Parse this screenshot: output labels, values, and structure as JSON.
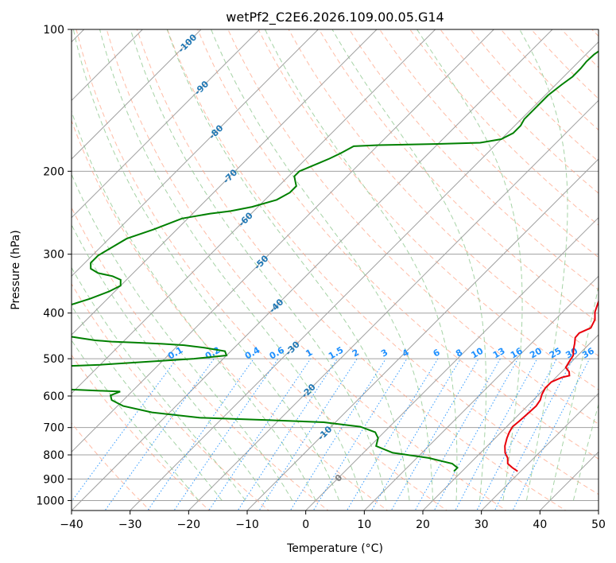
{
  "chart_data": {
    "type": "skew-t",
    "title": "wetPf2_C2E6.2026.109.00.05.G14",
    "xlabel": "Temperature (°C)",
    "ylabel": "Pressure (hPa)",
    "xlim": [
      -40,
      50
    ],
    "ylim": [
      1050,
      100
    ],
    "x_ticks": [
      -40,
      -30,
      -20,
      -10,
      0,
      10,
      20,
      30,
      40,
      50
    ],
    "x_tick_labels": [
      "−40",
      "−30",
      "−20",
      "−10",
      "0",
      "10",
      "20",
      "30",
      "40",
      "50"
    ],
    "y_ticks": [
      1000,
      900,
      800,
      700,
      600,
      500,
      400,
      300,
      200,
      100
    ],
    "y_tick_labels": [
      "1000",
      "900",
      "800",
      "700",
      "600",
      "500",
      "400",
      "300",
      "200",
      "100"
    ],
    "grid": true,
    "skew_degrees": 45,
    "colors": {
      "temperature": "#e8000b",
      "dewpoint": "#008000",
      "isotherm": "#a0a0a0",
      "dry_adiabat": "#ffa080",
      "moist_adiabat": "#90c890",
      "mixing_ratio": "#1e90ff",
      "label_blue": "#1f77b4",
      "label_red": "#d62728",
      "label_mixing": "#1e90ff",
      "label_zero": "#808080"
    },
    "series": [
      {
        "name": "Temperature",
        "points": [
          [
            29.5,
            867
          ],
          [
            28,
            852
          ],
          [
            26.5,
            835
          ],
          [
            25.5,
            812
          ],
          [
            24.2,
            792
          ],
          [
            23,
            766
          ],
          [
            22,
            737
          ],
          [
            21.4,
            716
          ],
          [
            21,
            697
          ],
          [
            21.2,
            678
          ],
          [
            21.4,
            650
          ],
          [
            21.5,
            630
          ],
          [
            21.2,
            612
          ],
          [
            20.5,
            595
          ],
          [
            20,
            577
          ],
          [
            20,
            560
          ],
          [
            21,
            548
          ],
          [
            22,
            543
          ],
          [
            21.3,
            533
          ],
          [
            20,
            522
          ],
          [
            19.6,
            508
          ],
          [
            19.2,
            492
          ],
          [
            18.3,
            479
          ],
          [
            17.4,
            464
          ],
          [
            16.5,
            451
          ],
          [
            16.4,
            441
          ],
          [
            17.5,
            430
          ],
          [
            16.8,
            413
          ],
          [
            15.5,
            398
          ],
          [
            14.5,
            381
          ],
          [
            13.3,
            360
          ],
          [
            12.2,
            342
          ],
          [
            11,
            322
          ],
          [
            9.8,
            302
          ],
          [
            8.5,
            289
          ],
          [
            6,
            270
          ],
          [
            3.5,
            250
          ],
          [
            1,
            232
          ],
          [
            -1,
            213
          ],
          [
            -2.5,
            198
          ],
          [
            -4,
            182
          ],
          [
            -5,
            168
          ],
          [
            -6,
            152
          ],
          [
            -6.5,
            143
          ],
          [
            -7.5,
            133
          ],
          [
            -8.5,
            124
          ],
          [
            -9.3,
            117
          ],
          [
            -10,
            113
          ]
        ]
      },
      {
        "name": "Dewpoint",
        "points": [
          [
            18.6,
            867
          ],
          [
            18.6,
            852
          ],
          [
            17,
            835
          ],
          [
            12,
            812
          ],
          [
            5,
            792
          ],
          [
            1,
            766
          ],
          [
            0,
            737
          ],
          [
            -1.5,
            716
          ],
          [
            -5,
            697
          ],
          [
            -12,
            682
          ],
          [
            -22,
            675
          ],
          [
            -34,
            667
          ],
          [
            -43,
            650
          ],
          [
            -49,
            630
          ],
          [
            -52,
            612
          ],
          [
            -53,
            598
          ],
          [
            -52,
            587
          ],
          [
            -75,
            572
          ],
          [
            -80,
            560
          ],
          [
            -82,
            548
          ],
          [
            -80,
            535
          ],
          [
            -76,
            525
          ],
          [
            -60,
            515
          ],
          [
            -45,
            500
          ],
          [
            -40,
            492
          ],
          [
            -41,
            482
          ],
          [
            -45,
            474
          ],
          [
            -49,
            468
          ],
          [
            -53,
            465
          ],
          [
            -58,
            462
          ],
          [
            -62,
            460
          ],
          [
            -65,
            457
          ],
          [
            -68,
            452
          ],
          [
            -72,
            445
          ],
          [
            -76,
            431
          ],
          [
            -77,
            418
          ],
          [
            -77,
            408
          ],
          [
            -78,
            400
          ],
          [
            -77,
            392
          ],
          [
            -75,
            383
          ],
          [
            -73,
            373
          ],
          [
            -71,
            360
          ],
          [
            -70,
            350
          ],
          [
            -71,
            340
          ],
          [
            -73,
            334
          ],
          [
            -76,
            329
          ],
          [
            -78,
            322
          ],
          [
            -79,
            313
          ],
          [
            -79,
            302
          ],
          [
            -78,
            290
          ],
          [
            -77,
            278
          ],
          [
            -74,
            266
          ],
          [
            -71,
            252
          ],
          [
            -67,
            246
          ],
          [
            -64,
            243
          ],
          [
            -61,
            238
          ],
          [
            -58,
            230
          ],
          [
            -57,
            222
          ],
          [
            -57,
            215
          ],
          [
            -58,
            210
          ],
          [
            -59,
            205
          ],
          [
            -59,
            200
          ],
          [
            -58,
            196
          ],
          [
            -57,
            192
          ],
          [
            -56,
            188
          ],
          [
            -55,
            183
          ],
          [
            -54,
            177
          ],
          [
            -50,
            176
          ],
          [
            -40,
            175
          ],
          [
            -33,
            174
          ],
          [
            -30,
            171
          ],
          [
            -29,
            166
          ],
          [
            -29,
            160
          ],
          [
            -29.5,
            155
          ],
          [
            -29.5,
            146
          ],
          [
            -29.5,
            138
          ],
          [
            -29,
            131
          ],
          [
            -28.5,
            126
          ],
          [
            -28.5,
            121
          ],
          [
            -28.7,
            117
          ],
          [
            -28.6,
            113
          ],
          [
            -28.2,
            110
          ],
          [
            -28.2,
            106
          ],
          [
            -28.2,
            103
          ],
          [
            -28.2,
            100
          ]
        ]
      }
    ],
    "isotherm_values": [
      -120,
      -110,
      -100,
      -90,
      -80,
      -70,
      -60,
      -50,
      -40,
      -30,
      -20,
      -10,
      0,
      10,
      20,
      30,
      40,
      50
    ],
    "isotherm_labels": [
      {
        "text": "-100",
        "value": -100,
        "p": 107
      },
      {
        "text": "-90",
        "value": -90,
        "p": 133
      },
      {
        "text": "-80",
        "value": -80,
        "p": 165
      },
      {
        "text": "-70",
        "value": -70,
        "p": 205
      },
      {
        "text": "-60",
        "value": -60,
        "p": 253
      },
      {
        "text": "-50",
        "value": -50,
        "p": 312
      },
      {
        "text": "-40",
        "value": -40,
        "p": 386
      },
      {
        "text": "-30",
        "value": -30,
        "p": 475
      },
      {
        "text": "-20",
        "value": -20,
        "p": 585
      },
      {
        "text": "-10",
        "value": -10,
        "p": 719
      },
      {
        "text": "0",
        "value": 0,
        "p": 895
      },
      {
        "text": "10",
        "value": 10,
        "p": 1050
      },
      {
        "text": "20",
        "value": 20,
        "p": 1050
      },
      {
        "text": "30",
        "value": 30,
        "p": 1050
      },
      {
        "text": "40",
        "value": 40,
        "p": 1050
      }
    ],
    "mixing_ratio_values": [
      0.1,
      0.2,
      0.4,
      0.6,
      1,
      1.5,
      2,
      3,
      4,
      6,
      8,
      10,
      13,
      16,
      20,
      25,
      30,
      36
    ],
    "mixing_ratio_labels": [
      "0.1",
      "0.2",
      "0.4",
      "0.6",
      "1",
      "1.5",
      "2",
      "3",
      "4",
      "6",
      "8",
      "10",
      "13",
      "16",
      "20",
      "25",
      "30",
      "36"
    ],
    "mixing_ratio_label_p": 500
  }
}
